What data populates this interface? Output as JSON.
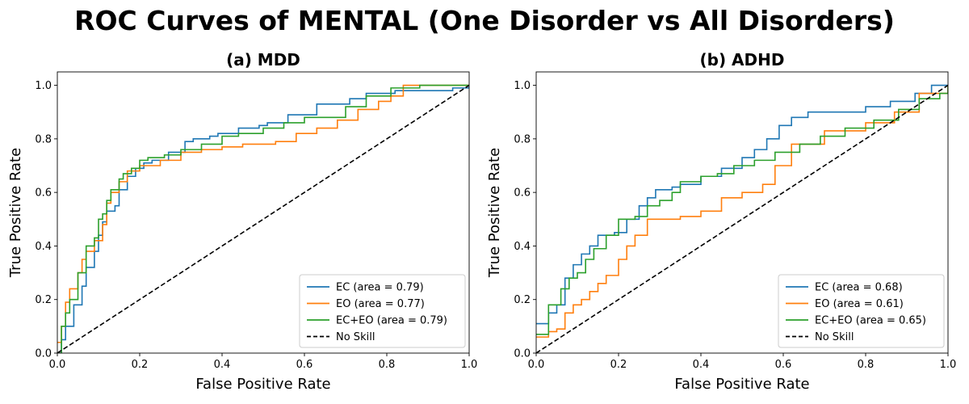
{
  "title": "ROC Curves of MENTAL (One Disorder vs All Disorders)",
  "chart_data": [
    {
      "type": "line",
      "title": "(a) MDD",
      "xlabel": "False Positive Rate",
      "ylabel": "True Positive Rate",
      "xlim": [
        0.0,
        1.0
      ],
      "ylim": [
        0.0,
        1.05
      ],
      "xticks": [
        "0.0",
        "0.2",
        "0.4",
        "0.6",
        "0.8",
        "1.0"
      ],
      "yticks": [
        "0.0",
        "0.2",
        "0.4",
        "0.6",
        "0.8",
        "1.0"
      ],
      "legend_position": "lower-right",
      "series": [
        {
          "name": "EC (area = 0.79)",
          "color": "#1f77b4",
          "dash": "solid",
          "x": [
            0.0,
            0.01,
            0.02,
            0.04,
            0.06,
            0.07,
            0.09,
            0.1,
            0.11,
            0.12,
            0.14,
            0.15,
            0.17,
            0.19,
            0.21,
            0.23,
            0.27,
            0.31,
            0.33,
            0.37,
            0.39,
            0.44,
            0.49,
            0.51,
            0.56,
            0.63,
            0.71,
            0.75,
            0.82,
            0.86,
            0.96,
            1.0
          ],
          "y": [
            0.0,
            0.05,
            0.1,
            0.18,
            0.25,
            0.32,
            0.38,
            0.44,
            0.49,
            0.53,
            0.55,
            0.61,
            0.66,
            0.69,
            0.71,
            0.72,
            0.75,
            0.79,
            0.8,
            0.81,
            0.82,
            0.84,
            0.85,
            0.86,
            0.89,
            0.93,
            0.95,
            0.97,
            0.98,
            0.98,
            0.99,
            1.0
          ]
        },
        {
          "name": "EO (area = 0.77)",
          "color": "#ff7f0e",
          "dash": "solid",
          "x": [
            0.0,
            0.01,
            0.02,
            0.03,
            0.05,
            0.06,
            0.07,
            0.09,
            0.11,
            0.12,
            0.13,
            0.15,
            0.17,
            0.2,
            0.25,
            0.3,
            0.35,
            0.4,
            0.45,
            0.53,
            0.58,
            0.63,
            0.68,
            0.73,
            0.78,
            0.81,
            0.84,
            1.0
          ],
          "y": [
            0.04,
            0.1,
            0.19,
            0.24,
            0.3,
            0.35,
            0.38,
            0.42,
            0.48,
            0.56,
            0.6,
            0.64,
            0.68,
            0.7,
            0.72,
            0.75,
            0.76,
            0.77,
            0.78,
            0.79,
            0.82,
            0.84,
            0.87,
            0.91,
            0.94,
            0.96,
            1.0,
            1.0
          ]
        },
        {
          "name": "EC+EO (area = 0.79)",
          "color": "#2ca02c",
          "dash": "solid",
          "x": [
            0.0,
            0.01,
            0.02,
            0.03,
            0.05,
            0.07,
            0.09,
            0.1,
            0.11,
            0.12,
            0.13,
            0.15,
            0.16,
            0.18,
            0.2,
            0.22,
            0.26,
            0.3,
            0.35,
            0.4,
            0.44,
            0.5,
            0.55,
            0.6,
            0.7,
            0.75,
            0.81,
            0.88,
            1.0
          ],
          "y": [
            0.0,
            0.1,
            0.15,
            0.2,
            0.3,
            0.4,
            0.43,
            0.5,
            0.52,
            0.57,
            0.61,
            0.65,
            0.67,
            0.69,
            0.72,
            0.73,
            0.74,
            0.76,
            0.78,
            0.81,
            0.82,
            0.84,
            0.86,
            0.88,
            0.92,
            0.96,
            0.99,
            1.0,
            1.0
          ]
        },
        {
          "name": "No Skill",
          "color": "#000000",
          "dash": "dashed",
          "x": [
            0.0,
            1.0
          ],
          "y": [
            0.0,
            1.0
          ]
        }
      ]
    },
    {
      "type": "line",
      "title": "(b) ADHD",
      "xlabel": "False Positive Rate",
      "ylabel": "True Positive Rate",
      "xlim": [
        0.0,
        1.0
      ],
      "ylim": [
        0.0,
        1.05
      ],
      "xticks": [
        "0.0",
        "0.2",
        "0.4",
        "0.6",
        "0.8",
        "1.0"
      ],
      "yticks": [
        "0.0",
        "0.2",
        "0.4",
        "0.6",
        "0.8",
        "1.0"
      ],
      "legend_position": "lower-right",
      "series": [
        {
          "name": "EC (area = 0.68)",
          "color": "#1f77b4",
          "dash": "solid",
          "x": [
            0.0,
            0.03,
            0.05,
            0.07,
            0.09,
            0.11,
            0.13,
            0.15,
            0.19,
            0.22,
            0.25,
            0.27,
            0.29,
            0.33,
            0.35,
            0.38,
            0.4,
            0.45,
            0.5,
            0.53,
            0.56,
            0.59,
            0.62,
            0.66,
            0.72,
            0.8,
            0.86,
            0.92,
            0.96,
            1.0
          ],
          "y": [
            0.11,
            0.15,
            0.18,
            0.28,
            0.33,
            0.37,
            0.4,
            0.44,
            0.45,
            0.5,
            0.55,
            0.58,
            0.61,
            0.62,
            0.63,
            0.63,
            0.66,
            0.69,
            0.73,
            0.76,
            0.8,
            0.85,
            0.88,
            0.9,
            0.9,
            0.92,
            0.94,
            0.97,
            1.0,
            1.0
          ]
        },
        {
          "name": "EO (area = 0.61)",
          "color": "#ff7f0e",
          "dash": "solid",
          "x": [
            0.0,
            0.03,
            0.05,
            0.07,
            0.09,
            0.11,
            0.13,
            0.15,
            0.17,
            0.2,
            0.22,
            0.24,
            0.27,
            0.3,
            0.35,
            0.4,
            0.45,
            0.5,
            0.55,
            0.58,
            0.62,
            0.7,
            0.8,
            0.87,
            0.93,
            1.0
          ],
          "y": [
            0.06,
            0.08,
            0.09,
            0.15,
            0.18,
            0.2,
            0.23,
            0.26,
            0.29,
            0.35,
            0.4,
            0.44,
            0.5,
            0.5,
            0.51,
            0.53,
            0.58,
            0.6,
            0.63,
            0.7,
            0.78,
            0.83,
            0.86,
            0.9,
            0.97,
            1.0
          ]
        },
        {
          "name": "EC+EO (area = 0.65)",
          "color": "#2ca02c",
          "dash": "solid",
          "x": [
            0.0,
            0.03,
            0.06,
            0.08,
            0.1,
            0.12,
            0.14,
            0.17,
            0.2,
            0.24,
            0.27,
            0.3,
            0.33,
            0.35,
            0.4,
            0.44,
            0.48,
            0.53,
            0.58,
            0.64,
            0.69,
            0.75,
            0.82,
            0.88,
            0.93,
            0.98,
            1.0
          ],
          "y": [
            0.07,
            0.18,
            0.24,
            0.28,
            0.3,
            0.35,
            0.39,
            0.44,
            0.5,
            0.51,
            0.55,
            0.57,
            0.6,
            0.64,
            0.66,
            0.67,
            0.7,
            0.72,
            0.75,
            0.78,
            0.81,
            0.84,
            0.87,
            0.91,
            0.95,
            0.97,
            1.0
          ]
        },
        {
          "name": "No Skill",
          "color": "#000000",
          "dash": "dashed",
          "x": [
            0.0,
            1.0
          ],
          "y": [
            0.0,
            1.0
          ]
        }
      ]
    }
  ]
}
